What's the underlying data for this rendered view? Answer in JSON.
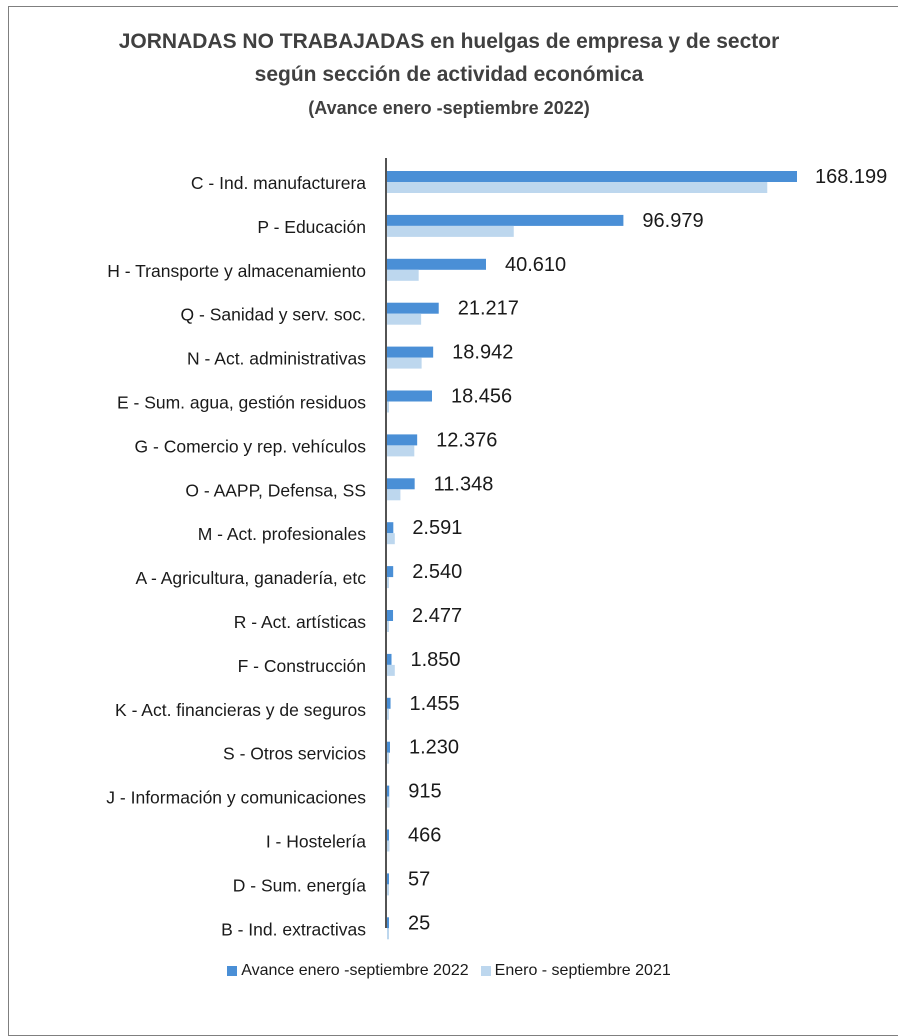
{
  "chart_data": {
    "type": "bar",
    "orientation": "horizontal",
    "title": "JORNADAS  NO TRABAJADAS  en huelgas de empresa y de sector",
    "subtitle": "según  sección de actividad  económica",
    "subtitle2": "(Avance enero -septiembre 2022)",
    "categories": [
      "C - Ind. manufacturera",
      "P - Educación",
      "H - Transporte y almacenamiento",
      "Q - Sanidad y serv. soc.",
      "N - Act. administrativas",
      "E - Sum. agua, gestión residuos",
      "G - Comercio y rep. vehículos",
      "O - AAPP, Defensa, SS",
      "M - Act. profesionales",
      "A - Agricultura, ganadería, etc",
      "R - Act. artísticas",
      "F - Construcción",
      "K - Act. financieras y de seguros",
      "S - Otros servicios",
      "J - Información y comunicaciones",
      "I - Hostelería",
      "D - Sum. energía",
      "B - Ind. extractivas"
    ],
    "series": [
      {
        "name": "Avance enero -septiembre 2022",
        "color": "#4a8fd6",
        "values": [
          168199,
          96979,
          40610,
          21217,
          18942,
          18456,
          12376,
          11348,
          2591,
          2540,
          2477,
          1850,
          1455,
          1230,
          915,
          466,
          57,
          25
        ],
        "labels": [
          "168.199",
          "96.979",
          "40.610",
          "21.217",
          "18.942",
          "18.456",
          "12.376",
          "11.348",
          "2.591",
          "2.540",
          "2.477",
          "1.850",
          "1.455",
          "1.230",
          "915",
          "466",
          "57",
          "25"
        ]
      },
      {
        "name": "Enero - septiembre 2021",
        "color": "#bdd7ee",
        "values": [
          156000,
          52000,
          13000,
          14000,
          14200,
          0,
          11200,
          5500,
          3200,
          0,
          0,
          3200,
          0,
          0,
          1000,
          1000,
          0,
          0
        ]
      }
    ],
    "xlim": [
      0,
      168199
    ],
    "grid": false,
    "legend_position": "bottom"
  }
}
